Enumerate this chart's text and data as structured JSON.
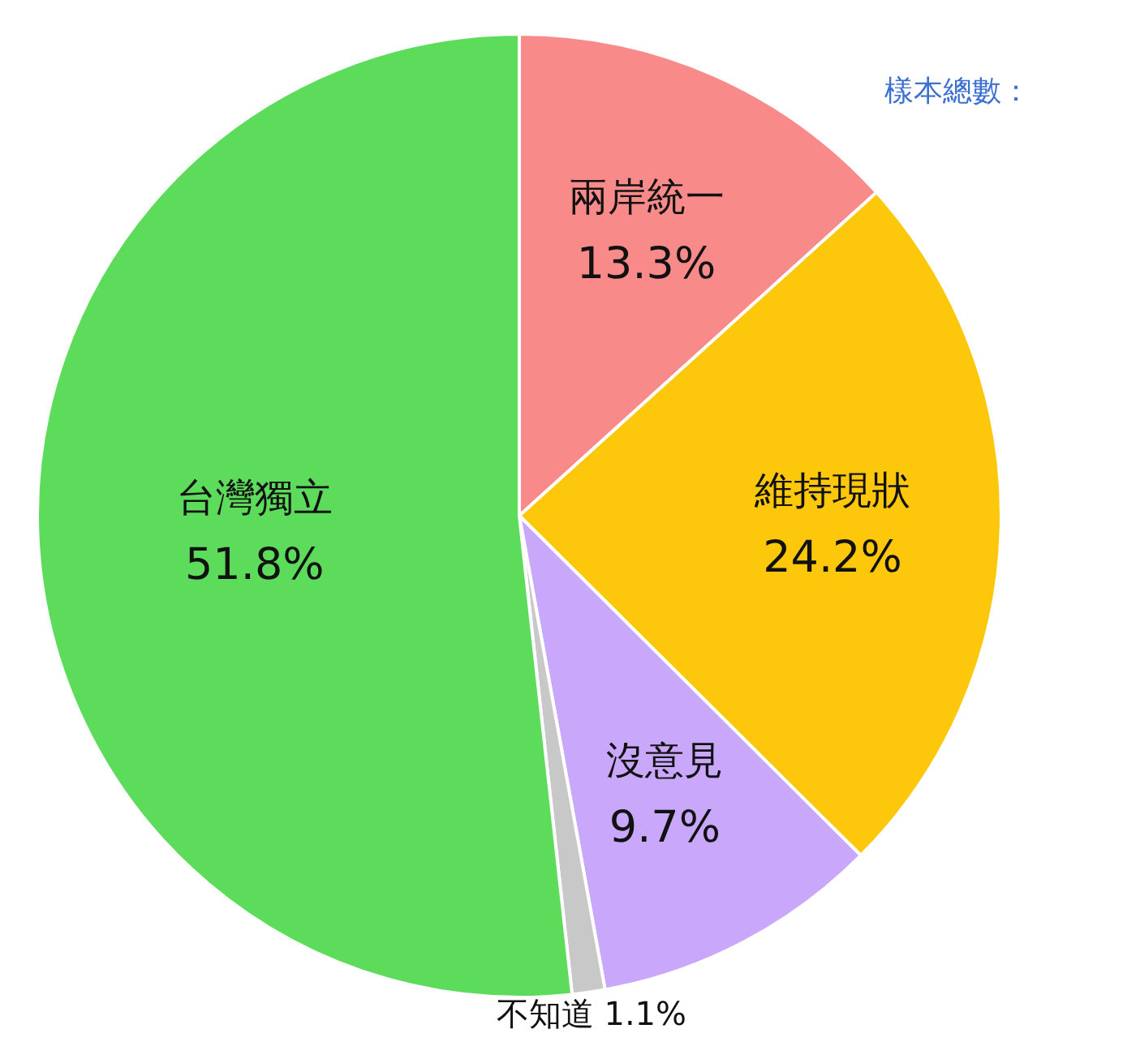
{
  "chart_data": {
    "type": "pie",
    "categories": [
      "兩岸統一",
      "維持現狀",
      "沒意見",
      "不知道",
      "台灣獨立"
    ],
    "values": [
      13.3,
      24.2,
      9.7,
      1.1,
      51.8
    ],
    "value_labels": [
      "13.3%",
      "24.2%",
      "9.7%",
      "1.1%",
      "51.8%"
    ],
    "colors": [
      "#f98a8a",
      "#fdc70c",
      "#c9a7fb",
      "#c8c8c8",
      "#5ddc5c"
    ],
    "annotations": [
      "樣本總數："
    ]
  }
}
